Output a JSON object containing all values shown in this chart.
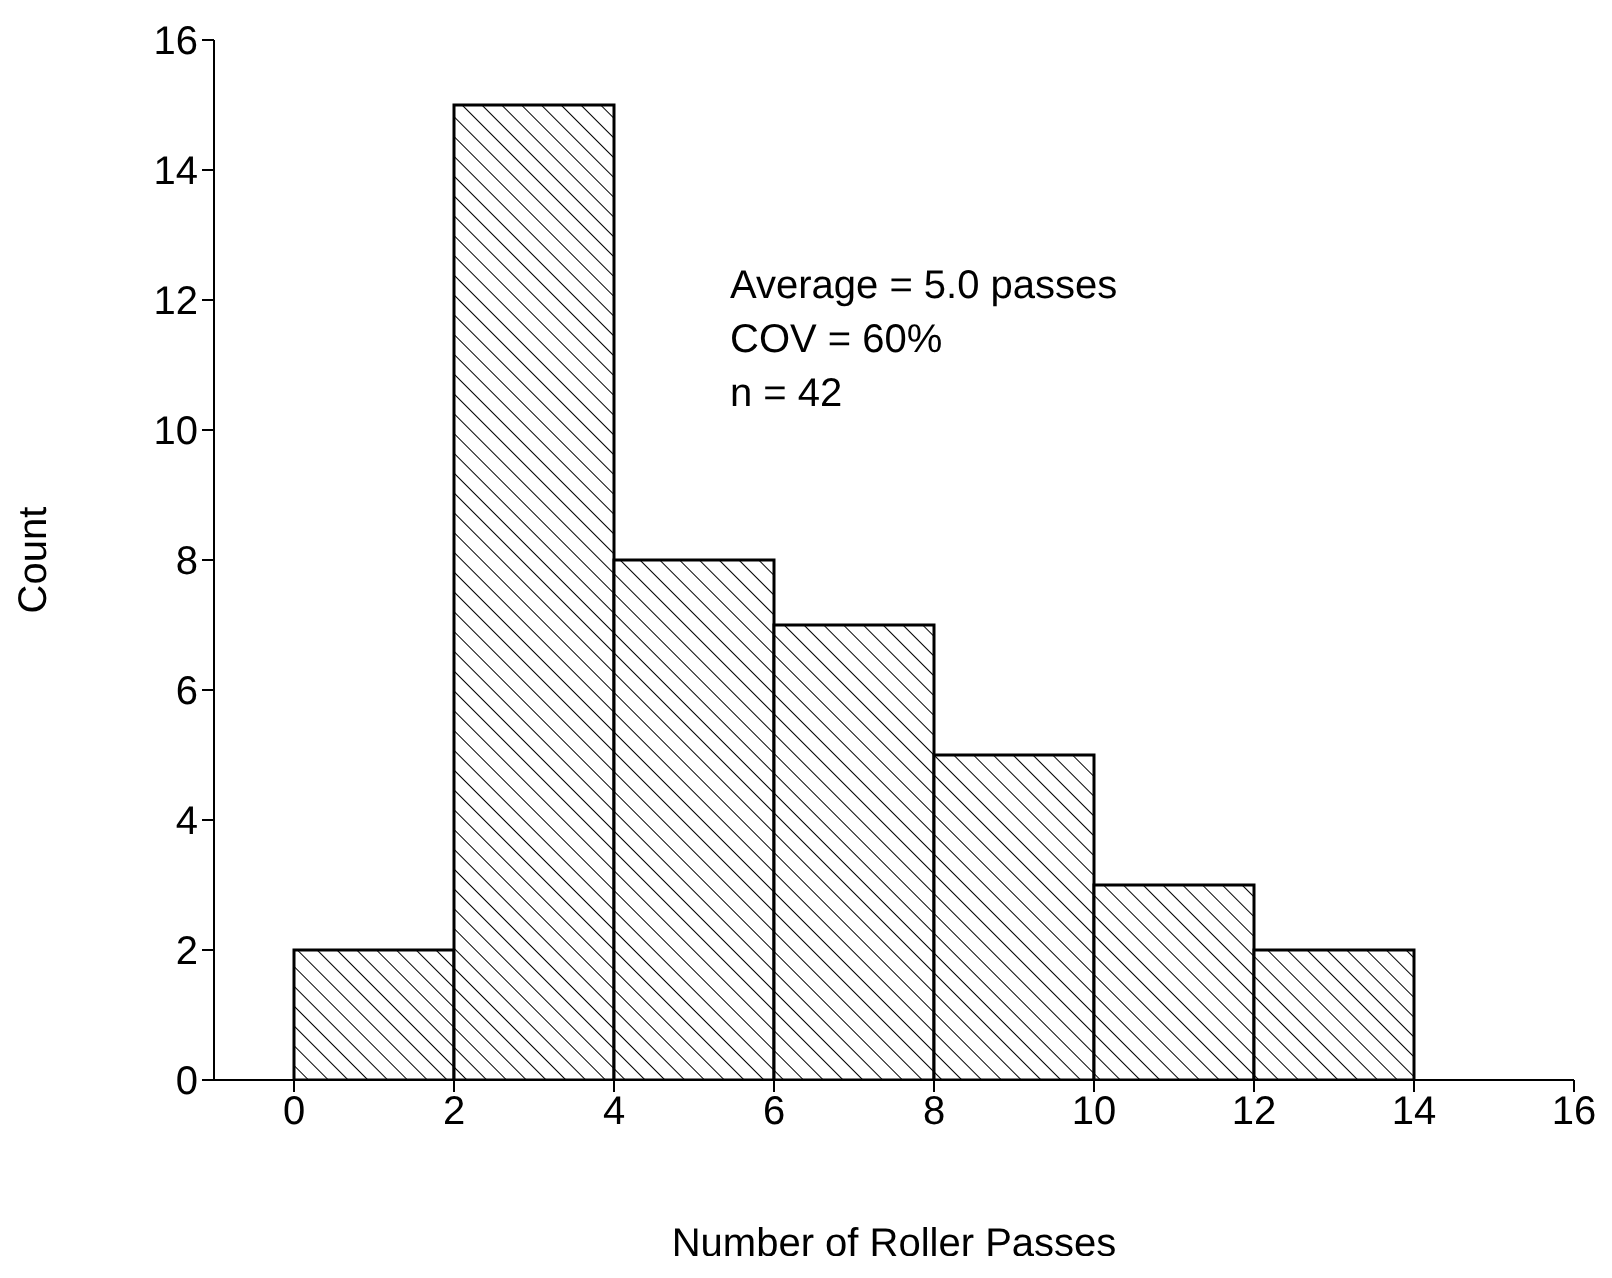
{
  "chart_data": {
    "type": "histogram",
    "xlabel": "Number of Roller Passes",
    "ylabel": "Count",
    "bins": [
      0,
      2,
      4,
      6,
      8,
      10,
      12,
      14
    ],
    "values": [
      2,
      15,
      8,
      7,
      5,
      3,
      2
    ],
    "color": "#000000",
    "xlim": [
      -1,
      16
    ],
    "xticks": [
      0,
      2,
      4,
      6,
      8,
      10,
      12,
      14,
      16
    ],
    "ylim": [
      0,
      16
    ],
    "yticks": [
      0,
      2,
      4,
      6,
      8,
      10,
      12,
      14,
      16
    ],
    "grid": false,
    "legend": false,
    "annotations": [
      "Average = 5.0 passes",
      "COV = 60%",
      "n = 42"
    ]
  }
}
